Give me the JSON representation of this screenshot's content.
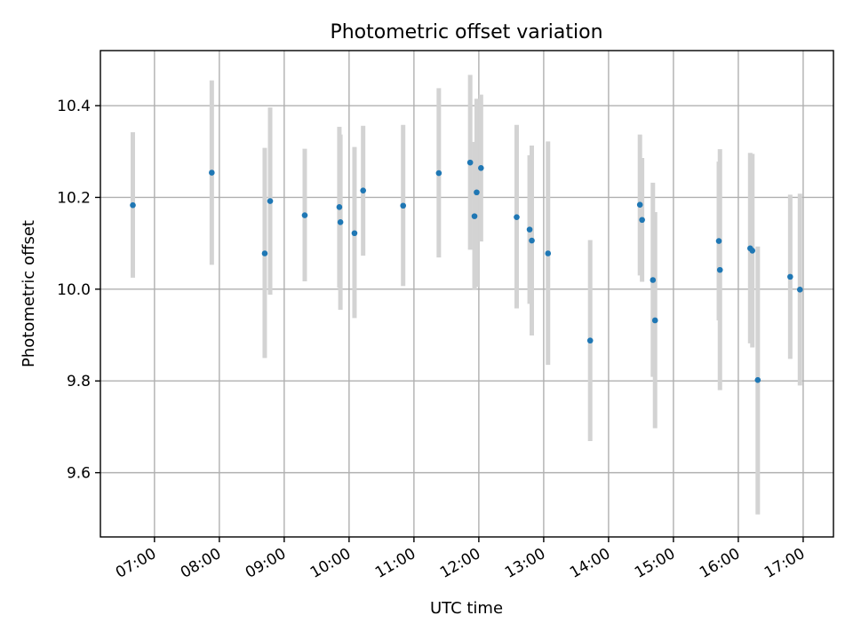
{
  "chart_data": {
    "type": "scatter",
    "title": "Photometric offset variation",
    "xlabel": "UTC time",
    "ylabel": "Photometric offset",
    "xlim": [
      "06:10",
      "17:28"
    ],
    "ylim": [
      9.46,
      10.52
    ],
    "grid": true,
    "x_ticks": [
      "07:00",
      "08:00",
      "09:00",
      "10:00",
      "11:00",
      "12:00",
      "13:00",
      "14:00",
      "15:00",
      "16:00",
      "17:00"
    ],
    "y_ticks": [
      9.6,
      9.8,
      10.0,
      10.2,
      10.4
    ],
    "y_tick_labels": [
      "9.6",
      "9.8",
      "10.0",
      "10.2",
      "10.4"
    ],
    "marker_color": "#1f77b4",
    "errorbar_color": "#d3d3d3",
    "points": [
      {
        "x": "06:40",
        "y": 10.183,
        "ylo": 10.025,
        "yhi": 10.342
      },
      {
        "x": "07:53",
        "y": 10.254,
        "ylo": 10.053,
        "yhi": 10.455
      },
      {
        "x": "08:42",
        "y": 10.078,
        "ylo": 9.85,
        "yhi": 10.308
      },
      {
        "x": "08:47",
        "y": 10.192,
        "ylo": 9.988,
        "yhi": 10.396
      },
      {
        "x": "09:19",
        "y": 10.161,
        "ylo": 10.017,
        "yhi": 10.306
      },
      {
        "x": "09:51",
        "y": 10.179,
        "ylo": 10.003,
        "yhi": 10.354
      },
      {
        "x": "09:52",
        "y": 10.146,
        "ylo": 9.955,
        "yhi": 10.337
      },
      {
        "x": "10:05",
        "y": 10.122,
        "ylo": 9.937,
        "yhi": 10.31
      },
      {
        "x": "10:13",
        "y": 10.215,
        "ylo": 10.073,
        "yhi": 10.356
      },
      {
        "x": "10:50",
        "y": 10.182,
        "ylo": 10.007,
        "yhi": 10.358
      },
      {
        "x": "11:23",
        "y": 10.253,
        "ylo": 10.069,
        "yhi": 10.438
      },
      {
        "x": "11:52",
        "y": 10.276,
        "ylo": 10.086,
        "yhi": 10.467
      },
      {
        "x": "11:56",
        "y": 10.159,
        "ylo": 9.998,
        "yhi": 10.321
      },
      {
        "x": "11:58",
        "y": 10.211,
        "ylo": 10.005,
        "yhi": 10.415
      },
      {
        "x": "12:02",
        "y": 10.264,
        "ylo": 10.104,
        "yhi": 10.424
      },
      {
        "x": "12:35",
        "y": 10.157,
        "ylo": 9.958,
        "yhi": 10.358
      },
      {
        "x": "12:47",
        "y": 10.13,
        "ylo": 9.968,
        "yhi": 10.292
      },
      {
        "x": "12:49",
        "y": 10.106,
        "ylo": 9.899,
        "yhi": 10.313
      },
      {
        "x": "13:04",
        "y": 10.078,
        "ylo": 9.835,
        "yhi": 10.322
      },
      {
        "x": "13:43",
        "y": 9.888,
        "ylo": 9.669,
        "yhi": 10.107
      },
      {
        "x": "14:29",
        "y": 10.184,
        "ylo": 10.03,
        "yhi": 10.337
      },
      {
        "x": "14:31",
        "y": 10.151,
        "ylo": 10.016,
        "yhi": 10.286
      },
      {
        "x": "14:41",
        "y": 10.02,
        "ylo": 9.809,
        "yhi": 10.232
      },
      {
        "x": "14:43",
        "y": 9.932,
        "ylo": 9.697,
        "yhi": 10.168
      },
      {
        "x": "15:42",
        "y": 10.105,
        "ylo": 9.932,
        "yhi": 10.278
      },
      {
        "x": "15:43",
        "y": 10.042,
        "ylo": 9.78,
        "yhi": 10.305
      },
      {
        "x": "16:11",
        "y": 10.089,
        "ylo": 9.882,
        "yhi": 10.297
      },
      {
        "x": "16:13",
        "y": 10.084,
        "ylo": 9.873,
        "yhi": 10.295
      },
      {
        "x": "16:18",
        "y": 9.802,
        "ylo": 9.509,
        "yhi": 10.093
      },
      {
        "x": "16:48",
        "y": 10.027,
        "ylo": 9.848,
        "yhi": 10.206
      },
      {
        "x": "16:57",
        "y": 9.999,
        "ylo": 9.79,
        "yhi": 10.208
      }
    ]
  }
}
